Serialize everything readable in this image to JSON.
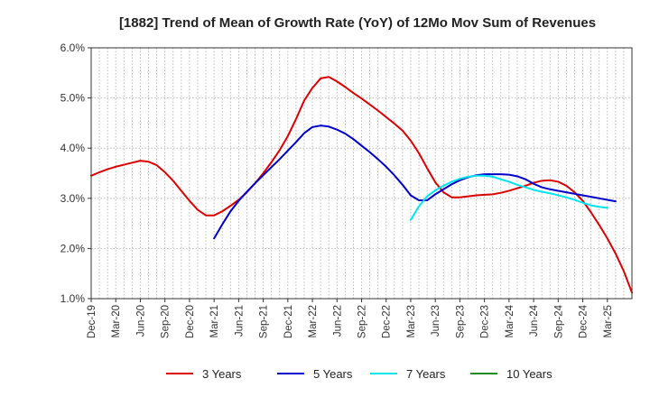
{
  "chart_data": {
    "type": "line",
    "title": "[1882]  Trend of Mean of Growth Rate (YoY) of 12Mo Mov Sum of Revenues",
    "xlabel": "",
    "ylabel": "",
    "ylim": [
      1.0,
      6.0
    ],
    "yticks": [
      1.0,
      2.0,
      3.0,
      4.0,
      5.0,
      6.0
    ],
    "ytick_labels": [
      "1.0%",
      "2.0%",
      "3.0%",
      "4.0%",
      "5.0%",
      "6.0%"
    ],
    "x_range_index": [
      0,
      66
    ],
    "x_tick_labels": [
      "Dec-19",
      "Mar-20",
      "Jun-20",
      "Sep-20",
      "Dec-20",
      "Mar-21",
      "Jun-21",
      "Sep-21",
      "Dec-21",
      "Mar-22",
      "Jun-22",
      "Sep-22",
      "Dec-22",
      "Mar-23",
      "Jun-23",
      "Sep-23",
      "Dec-23",
      "Mar-24",
      "Jun-24",
      "Sep-24",
      "Dec-24",
      "Mar-25"
    ],
    "x_note": "x values are month indices where 0 = Dec-19 (each tick = 3 months)",
    "grid": true,
    "legend_position": "bottom",
    "series": [
      {
        "name": "3 Years",
        "color": "#dd0000",
        "points": [
          [
            0,
            3.45
          ],
          [
            1,
            3.52
          ],
          [
            2,
            3.58
          ],
          [
            3,
            3.63
          ],
          [
            4,
            3.67
          ],
          [
            5,
            3.71
          ],
          [
            6,
            3.75
          ],
          [
            7,
            3.73
          ],
          [
            8,
            3.66
          ],
          [
            9,
            3.52
          ],
          [
            10,
            3.35
          ],
          [
            11,
            3.15
          ],
          [
            12,
            2.95
          ],
          [
            13,
            2.77
          ],
          [
            14,
            2.66
          ],
          [
            15,
            2.66
          ],
          [
            16,
            2.74
          ],
          [
            17,
            2.85
          ],
          [
            18,
            2.97
          ],
          [
            19,
            3.12
          ],
          [
            20,
            3.3
          ],
          [
            21,
            3.5
          ],
          [
            22,
            3.72
          ],
          [
            23,
            3.96
          ],
          [
            24,
            4.24
          ],
          [
            25,
            4.58
          ],
          [
            26,
            4.95
          ],
          [
            27,
            5.2
          ],
          [
            28,
            5.39
          ],
          [
            29,
            5.42
          ],
          [
            30,
            5.33
          ],
          [
            31,
            5.22
          ],
          [
            32,
            5.1
          ],
          [
            33,
            4.99
          ],
          [
            34,
            4.87
          ],
          [
            35,
            4.75
          ],
          [
            36,
            4.62
          ],
          [
            37,
            4.49
          ],
          [
            38,
            4.35
          ],
          [
            39,
            4.15
          ],
          [
            40,
            3.9
          ],
          [
            41,
            3.6
          ],
          [
            42,
            3.32
          ],
          [
            43,
            3.12
          ],
          [
            44,
            3.02
          ],
          [
            45,
            3.02
          ],
          [
            46,
            3.04
          ],
          [
            47,
            3.06
          ],
          [
            48,
            3.07
          ],
          [
            49,
            3.08
          ],
          [
            50,
            3.11
          ],
          [
            51,
            3.15
          ],
          [
            52,
            3.2
          ],
          [
            53,
            3.25
          ],
          [
            54,
            3.31
          ],
          [
            55,
            3.35
          ],
          [
            56,
            3.36
          ],
          [
            57,
            3.33
          ],
          [
            58,
            3.25
          ],
          [
            59,
            3.12
          ],
          [
            60,
            2.95
          ],
          [
            61,
            2.72
          ],
          [
            62,
            2.47
          ],
          [
            63,
            2.2
          ],
          [
            64,
            1.9
          ],
          [
            65,
            1.55
          ],
          [
            66,
            1.12
          ]
        ]
      },
      {
        "name": "5 Years",
        "color": "#0000cc",
        "points": [
          [
            15,
            2.2
          ],
          [
            16,
            2.48
          ],
          [
            17,
            2.74
          ],
          [
            18,
            2.95
          ],
          [
            19,
            3.13
          ],
          [
            20,
            3.3
          ],
          [
            21,
            3.46
          ],
          [
            22,
            3.62
          ],
          [
            23,
            3.78
          ],
          [
            24,
            3.95
          ],
          [
            25,
            4.12
          ],
          [
            26,
            4.3
          ],
          [
            27,
            4.42
          ],
          [
            28,
            4.45
          ],
          [
            29,
            4.43
          ],
          [
            30,
            4.37
          ],
          [
            31,
            4.29
          ],
          [
            32,
            4.18
          ],
          [
            33,
            4.05
          ],
          [
            34,
            3.92
          ],
          [
            35,
            3.78
          ],
          [
            36,
            3.63
          ],
          [
            37,
            3.46
          ],
          [
            38,
            3.27
          ],
          [
            39,
            3.06
          ],
          [
            40,
            2.96
          ],
          [
            41,
            2.96
          ],
          [
            42,
            3.08
          ],
          [
            43,
            3.18
          ],
          [
            44,
            3.28
          ],
          [
            45,
            3.36
          ],
          [
            46,
            3.42
          ],
          [
            47,
            3.46
          ],
          [
            48,
            3.48
          ],
          [
            49,
            3.48
          ],
          [
            50,
            3.48
          ],
          [
            51,
            3.47
          ],
          [
            52,
            3.44
          ],
          [
            53,
            3.38
          ],
          [
            54,
            3.29
          ],
          [
            55,
            3.22
          ],
          [
            56,
            3.18
          ],
          [
            57,
            3.15
          ],
          [
            58,
            3.12
          ],
          [
            59,
            3.09
          ],
          [
            60,
            3.06
          ],
          [
            61,
            3.03
          ],
          [
            62,
            3.0
          ],
          [
            63,
            2.97
          ],
          [
            64,
            2.94
          ]
        ]
      },
      {
        "name": "7 Years",
        "color": "#00e5ee",
        "points": [
          [
            39,
            2.57
          ],
          [
            40,
            2.84
          ],
          [
            41,
            3.04
          ],
          [
            42,
            3.16
          ],
          [
            43,
            3.25
          ],
          [
            44,
            3.33
          ],
          [
            45,
            3.39
          ],
          [
            46,
            3.43
          ],
          [
            47,
            3.45
          ],
          [
            48,
            3.45
          ],
          [
            49,
            3.43
          ],
          [
            50,
            3.38
          ],
          [
            51,
            3.33
          ],
          [
            52,
            3.27
          ],
          [
            53,
            3.22
          ],
          [
            54,
            3.17
          ],
          [
            55,
            3.13
          ],
          [
            56,
            3.1
          ],
          [
            57,
            3.06
          ],
          [
            58,
            3.02
          ],
          [
            59,
            2.97
          ],
          [
            60,
            2.91
          ],
          [
            61,
            2.86
          ],
          [
            62,
            2.83
          ],
          [
            63,
            2.81
          ]
        ]
      },
      {
        "name": "10 Years",
        "color": "#228b22",
        "points": []
      }
    ]
  }
}
